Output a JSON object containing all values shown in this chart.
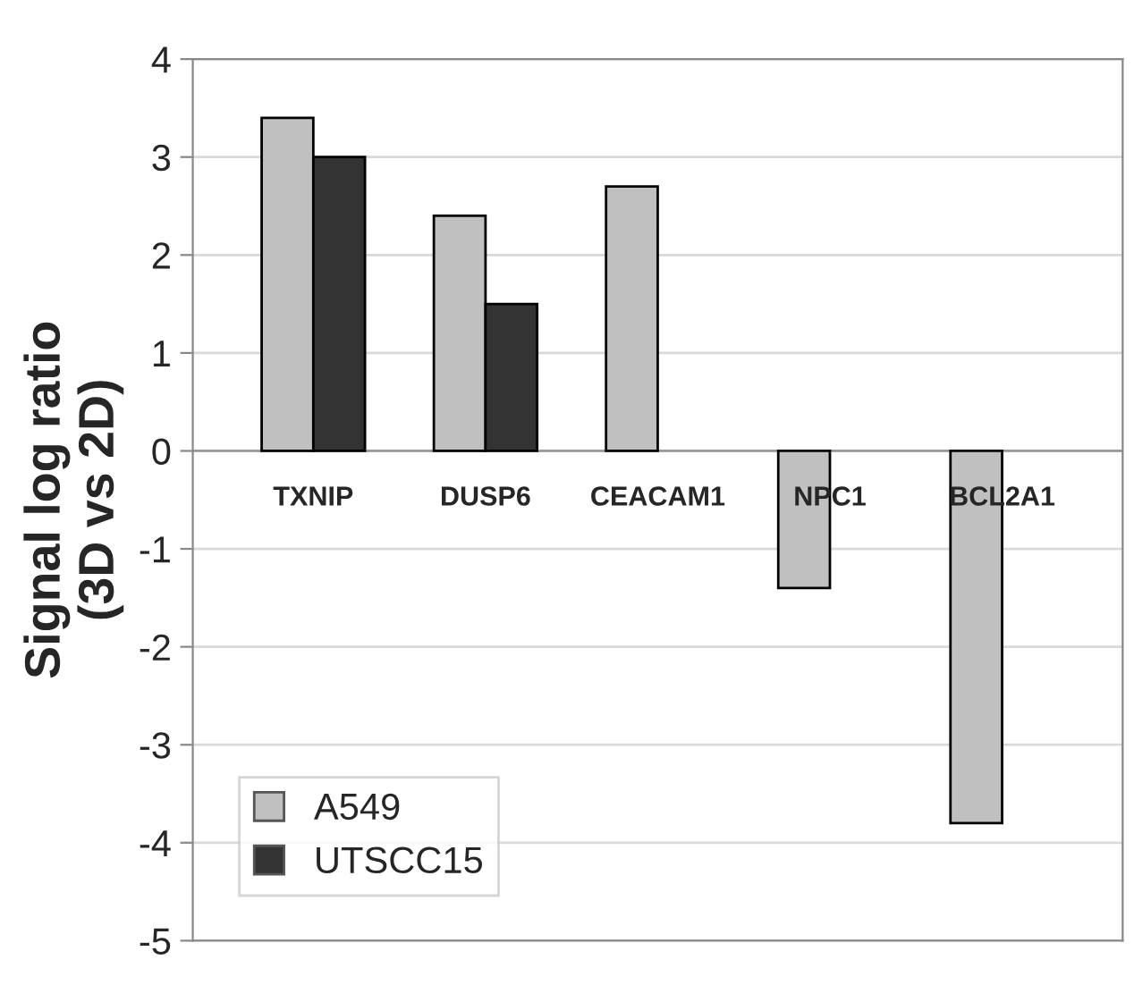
{
  "chart_data": {
    "type": "bar",
    "ylabel": "Signal log ratio\n(3D vs 2D)",
    "categories": [
      "TXNIP",
      "DUSP6",
      "CEACAM1",
      "NPC1",
      "BCL2A1"
    ],
    "series": [
      {
        "name": "A549",
        "color": "#c0c0c0",
        "values": [
          3.4,
          2.4,
          2.7,
          -1.4,
          -3.8
        ]
      },
      {
        "name": "UTSCC15",
        "color": "#333333",
        "values": [
          3.0,
          1.5,
          null,
          null,
          null
        ]
      }
    ],
    "ylim": [
      -5,
      4
    ],
    "yticks": [
      -5,
      -4,
      -3,
      -2,
      -1,
      0,
      1,
      2,
      3,
      4
    ],
    "grid": "y",
    "legend": "bottom left"
  }
}
